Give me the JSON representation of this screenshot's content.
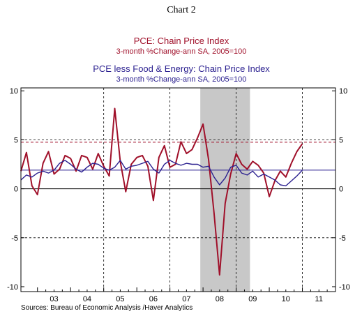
{
  "chart_data": {
    "type": "line",
    "title": "Chart 2",
    "series": [
      {
        "name": "PCE: Chain Price Index",
        "subtitle": "3-month %Change-ann     SA, 2005=100",
        "color": "#a0102a",
        "x": [
          2002.5,
          2002.667,
          2002.833,
          2003.0,
          2003.167,
          2003.333,
          2003.5,
          2003.667,
          2003.833,
          2004.0,
          2004.167,
          2004.333,
          2004.5,
          2004.667,
          2004.833,
          2005.0,
          2005.167,
          2005.333,
          2005.5,
          2005.667,
          2005.833,
          2006.0,
          2006.167,
          2006.333,
          2006.5,
          2006.667,
          2006.833,
          2007.0,
          2007.167,
          2007.333,
          2007.5,
          2007.667,
          2007.833,
          2008.0,
          2008.167,
          2008.333,
          2008.5,
          2008.667,
          2008.833,
          2009.0,
          2009.167,
          2009.333,
          2009.5,
          2009.667,
          2009.833,
          2010.0,
          2010.167,
          2010.333,
          2010.5,
          2010.667,
          2010.833,
          2011.0
        ],
        "values": [
          1.8,
          3.7,
          0.3,
          -0.6,
          2.6,
          3.8,
          1.5,
          2.0,
          3.4,
          3.1,
          1.8,
          3.4,
          3.2,
          2.0,
          3.6,
          2.3,
          1.3,
          8.2,
          2.8,
          -0.3,
          2.5,
          3.2,
          3.4,
          2.3,
          -1.2,
          3.2,
          4.4,
          2.2,
          2.5,
          4.8,
          3.6,
          4.0,
          5.2,
          6.6,
          3.0,
          -2.5,
          -8.8,
          -1.5,
          1.5,
          3.6,
          2.5,
          2.0,
          2.8,
          2.4,
          1.6,
          -0.8,
          0.8,
          1.8,
          1.2,
          2.6,
          3.8,
          4.6
        ]
      },
      {
        "name": "PCE less Food & Energy: Chain Price Index",
        "subtitle": "3-month %Change-ann     SA, 2005=100",
        "color": "#2a1f8f",
        "x": [
          2002.5,
          2002.667,
          2002.833,
          2003.0,
          2003.167,
          2003.333,
          2003.5,
          2003.667,
          2003.833,
          2004.0,
          2004.167,
          2004.333,
          2004.5,
          2004.667,
          2004.833,
          2005.0,
          2005.167,
          2005.333,
          2005.5,
          2005.667,
          2005.833,
          2006.0,
          2006.167,
          2006.333,
          2006.5,
          2006.667,
          2006.833,
          2007.0,
          2007.167,
          2007.333,
          2007.5,
          2007.667,
          2007.833,
          2008.0,
          2008.167,
          2008.333,
          2008.5,
          2008.667,
          2008.833,
          2009.0,
          2009.167,
          2009.333,
          2009.5,
          2009.667,
          2009.833,
          2010.0,
          2010.167,
          2010.333,
          2010.5,
          2010.667,
          2010.833,
          2011.0
        ],
        "values": [
          0.9,
          1.4,
          1.2,
          1.6,
          1.8,
          1.6,
          1.9,
          2.6,
          2.9,
          2.5,
          2.0,
          1.7,
          2.2,
          2.6,
          2.5,
          2.1,
          1.9,
          2.2,
          2.9,
          2.0,
          2.3,
          2.4,
          2.6,
          2.8,
          2.0,
          1.6,
          2.5,
          2.9,
          2.6,
          2.4,
          2.6,
          2.5,
          2.5,
          2.2,
          2.3,
          1.2,
          0.4,
          1.1,
          2.2,
          2.4,
          1.6,
          1.4,
          1.8,
          1.2,
          1.5,
          1.2,
          0.9,
          0.4,
          0.3,
          0.8,
          1.3,
          1.9
        ]
      }
    ],
    "reference_lines": [
      {
        "value": 4.75,
        "style": "dashed",
        "color": "#a0102a"
      },
      {
        "value": 1.9,
        "style": "solid",
        "color": "#2a1f8f"
      }
    ],
    "recession_shading": {
      "from": 2007.917,
      "to": 2009.417,
      "color": "#c8c8c8"
    },
    "year_dividers": [
      2005.0,
      2007.0,
      2009.0,
      2011.0
    ],
    "x_tick_labels": [
      {
        "label": "03",
        "x": 2003.5
      },
      {
        "label": "04",
        "x": 2004.5
      },
      {
        "label": "05",
        "x": 2005.5
      },
      {
        "label": "06",
        "x": 2006.5
      },
      {
        "label": "07",
        "x": 2007.5
      },
      {
        "label": "08",
        "x": 2008.5
      },
      {
        "label": "09",
        "x": 2009.5
      },
      {
        "label": "10",
        "x": 2010.5
      },
      {
        "label": "11",
        "x": 2011.5
      }
    ],
    "y_ticks": [
      10,
      5,
      0,
      -5,
      -10
    ],
    "y_tick_labels": [
      "10",
      "5",
      "0",
      "-5",
      "-10"
    ],
    "xlim": [
      2002.5,
      2012.0
    ],
    "ylim": [
      -10.5,
      10.3
    ],
    "grid": "dashed horizontal at 5 and -5",
    "legend_placement": "top-center",
    "source": "Sources:  Bureau of Economic Analysis /Haver Analytics"
  }
}
